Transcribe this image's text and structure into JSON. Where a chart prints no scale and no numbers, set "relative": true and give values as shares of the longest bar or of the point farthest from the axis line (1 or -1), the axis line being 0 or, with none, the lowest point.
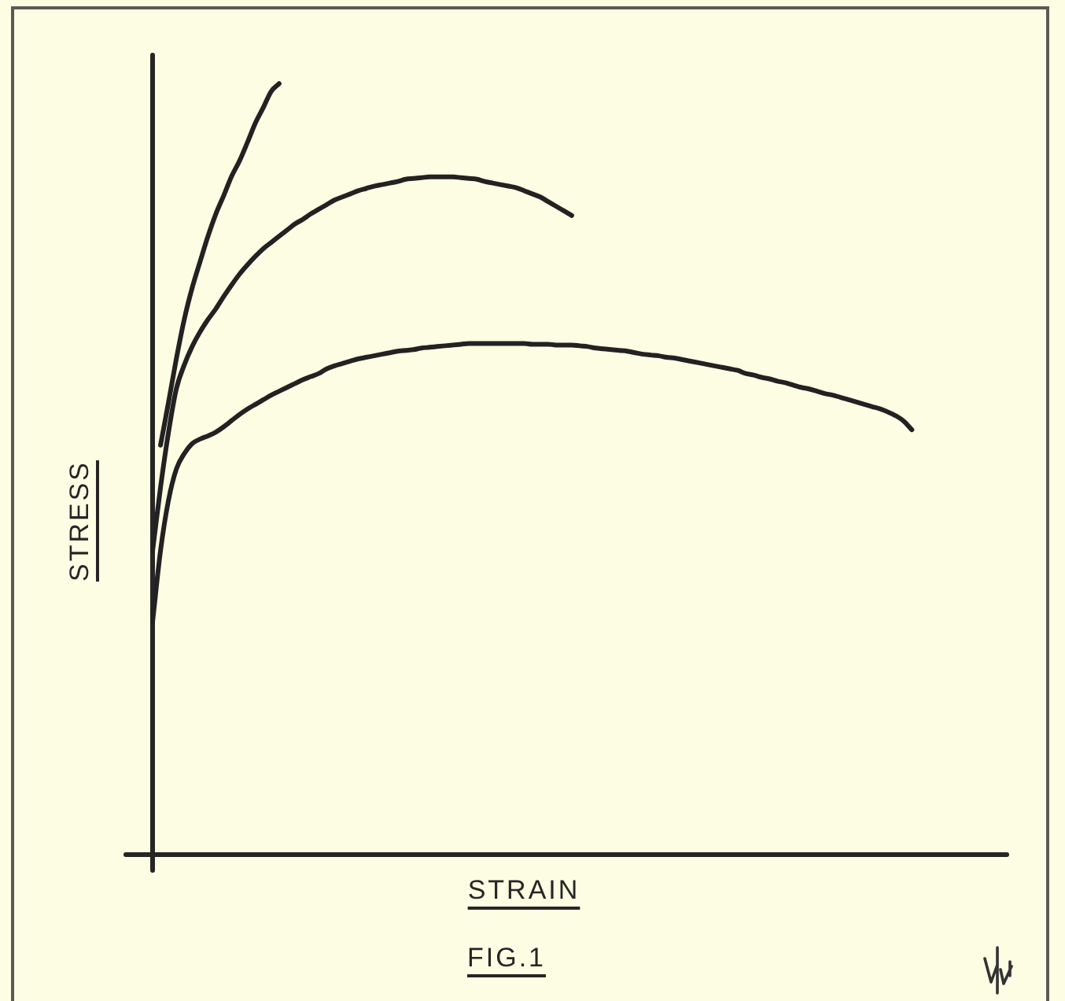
{
  "chart_data": {
    "type": "line",
    "relative": true,
    "xlabel": "STRAIN",
    "ylabel": "STRESS",
    "annotations": [
      "FIG.1"
    ],
    "categories": [
      null,
      null,
      null,
      null,
      null,
      null,
      null,
      null,
      null,
      null,
      null,
      null,
      null,
      null,
      null,
      null,
      null,
      null,
      null,
      null,
      null,
      null,
      null,
      null,
      null,
      null,
      null,
      null,
      null,
      null,
      null,
      null,
      null,
      null,
      null,
      null,
      null,
      null,
      null,
      null,
      null,
      null,
      null,
      null,
      null,
      null,
      null,
      null,
      null,
      null,
      null,
      null,
      null,
      null,
      null,
      null,
      null,
      null,
      null,
      null,
      null,
      null,
      null,
      null,
      null,
      null,
      null,
      null,
      null,
      null,
      null,
      null,
      null,
      null,
      null,
      null,
      null,
      null,
      null,
      null,
      null,
      null,
      null,
      null,
      null,
      null,
      null,
      null,
      null,
      null,
      null,
      null,
      null,
      null,
      null,
      null,
      null,
      null,
      null,
      null,
      null,
      null,
      null,
      null,
      null,
      null,
      null,
      null,
      null
    ],
    "series": [
      {
        "color": "#222222",
        "values": [
          null,
          0.531,
          0.586,
          0.643,
          0.694,
          0.735,
          0.769,
          0.802,
          0.831,
          0.855,
          0.88,
          0.9,
          0.924,
          0.949,
          0.969,
          0.99,
          1,
          null,
          null,
          null,
          null,
          null,
          null,
          null,
          null,
          null,
          null,
          null,
          null,
          null,
          null,
          null,
          null,
          null,
          null,
          null,
          null,
          null,
          null,
          null,
          null,
          null,
          null,
          null,
          null,
          null,
          null,
          null,
          null,
          null,
          null,
          null,
          null,
          null,
          null,
          null,
          null,
          null,
          null,
          null,
          null,
          null,
          null,
          null,
          null,
          null,
          null,
          null,
          null,
          null,
          null,
          null,
          null,
          null,
          null,
          null,
          null,
          null,
          null,
          null,
          null,
          null,
          null,
          null,
          null,
          null,
          null,
          null,
          null,
          null,
          null,
          null,
          null,
          null,
          null,
          null,
          null,
          null,
          null,
          null,
          null,
          null,
          null,
          null,
          null,
          null,
          null,
          null,
          null
        ]
      },
      {
        "color": "#222222",
        "values": [
          0.394,
          0.476,
          0.547,
          0.604,
          0.635,
          0.659,
          0.678,
          0.694,
          0.708,
          0.724,
          0.739,
          0.753,
          0.765,
          0.776,
          0.786,
          0.794,
          0.802,
          0.81,
          0.818,
          0.824,
          0.831,
          0.837,
          0.843,
          0.849,
          0.853,
          0.857,
          0.861,
          0.864,
          0.867,
          0.869,
          0.871,
          0.873,
          0.876,
          0.877,
          0.878,
          0.879,
          0.879,
          0.879,
          0.879,
          0.878,
          0.877,
          0.876,
          0.873,
          0.871,
          0.869,
          0.867,
          0.865,
          0.861,
          0.857,
          0.853,
          0.847,
          0.841,
          0.835,
          0.829,
          null,
          null,
          null,
          null,
          null,
          null,
          null,
          null,
          null,
          null,
          null,
          null,
          null,
          null,
          null,
          null,
          null,
          null,
          null,
          null,
          null,
          null,
          null,
          null,
          null,
          null,
          null,
          null,
          null,
          null,
          null,
          null,
          null,
          null,
          null,
          null,
          null,
          null,
          null,
          null,
          null,
          null,
          null,
          null,
          null,
          null,
          null,
          null,
          null,
          null,
          null,
          null,
          null,
          null,
          null
        ]
      },
      {
        "color": "#222222",
        "values": [
          0.302,
          0.394,
          0.459,
          0.5,
          0.52,
          0.533,
          0.539,
          0.543,
          0.548,
          0.555,
          0.563,
          0.571,
          0.578,
          0.584,
          0.59,
          0.596,
          0.601,
          0.606,
          0.611,
          0.616,
          0.62,
          0.624,
          0.63,
          0.634,
          0.637,
          0.64,
          0.643,
          0.645,
          0.647,
          0.649,
          0.651,
          0.653,
          0.654,
          0.655,
          0.657,
          0.658,
          0.659,
          0.66,
          0.661,
          0.662,
          0.663,
          0.663,
          0.663,
          0.663,
          0.663,
          0.663,
          0.663,
          0.663,
          0.662,
          0.662,
          0.662,
          0.661,
          0.661,
          0.661,
          0.66,
          0.659,
          0.657,
          0.656,
          0.655,
          0.654,
          0.653,
          0.651,
          0.649,
          0.648,
          0.647,
          0.645,
          0.644,
          0.642,
          0.64,
          0.638,
          0.636,
          0.634,
          0.632,
          0.63,
          0.628,
          0.624,
          0.622,
          0.619,
          0.617,
          0.614,
          0.612,
          0.609,
          0.606,
          0.604,
          0.601,
          0.598,
          0.596,
          0.593,
          0.59,
          0.587,
          0.584,
          0.581,
          0.578,
          0.574,
          0.569,
          0.562,
          0.551,
          null,
          null,
          null,
          null,
          null,
          null,
          null,
          null,
          null,
          null,
          null,
          null
        ]
      }
    ]
  }
}
